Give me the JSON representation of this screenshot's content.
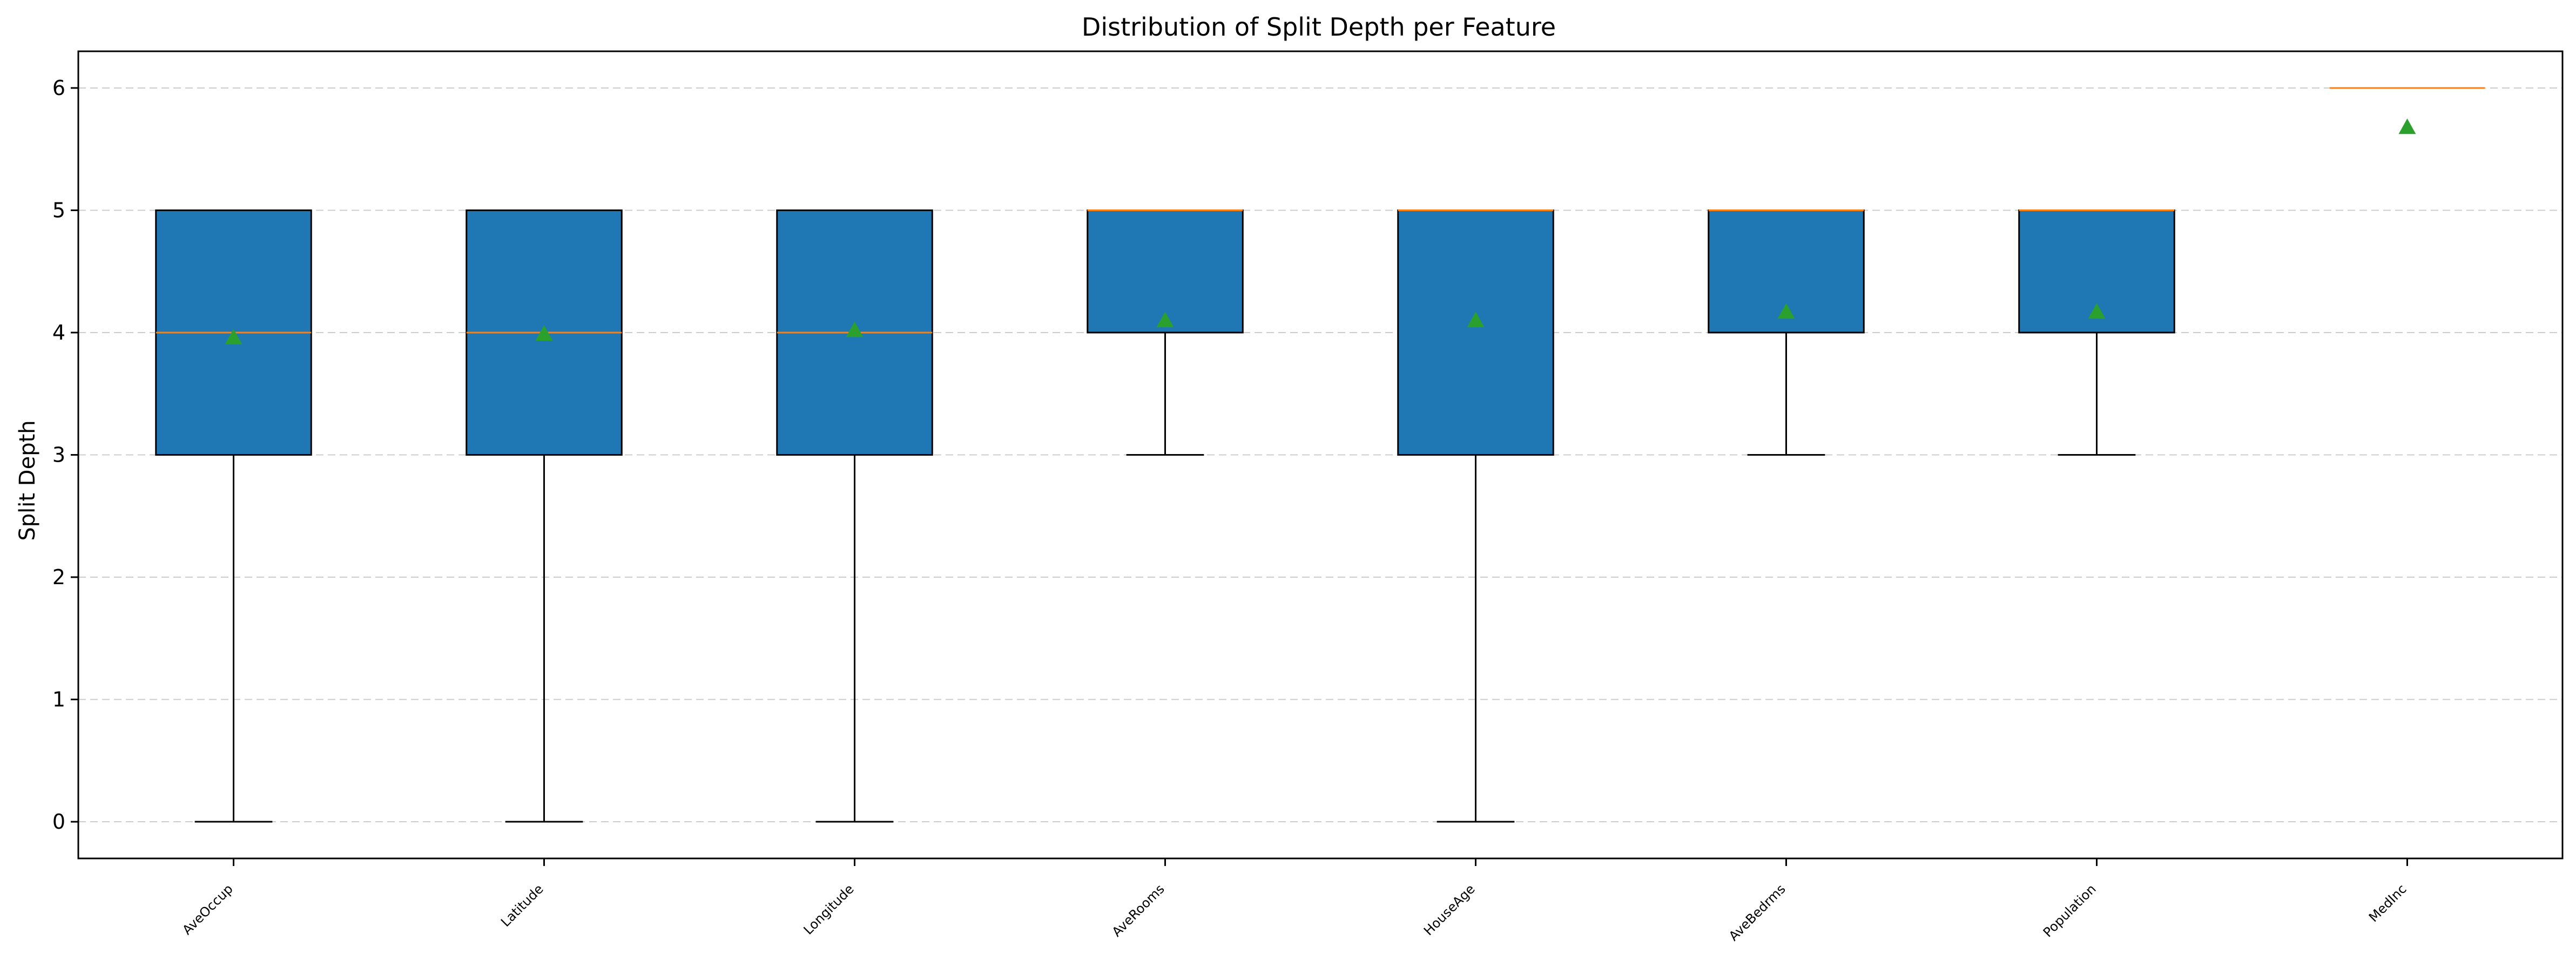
{
  "chart_data": {
    "type": "boxplot",
    "title": "Distribution of Split Depth per Feature",
    "xlabel": "",
    "ylabel": "Split Depth",
    "ylim": [
      -0.3,
      6.3
    ],
    "yticks": [
      0,
      1,
      2,
      3,
      4,
      5,
      6
    ],
    "grid": {
      "y": true,
      "x": false,
      "style": "dashed"
    },
    "categories": [
      "AveOccup",
      "Latitude",
      "Longitude",
      "AveRooms",
      "HouseAge",
      "AveBedrms",
      "Population",
      "MedInc"
    ],
    "boxes": [
      {
        "whisker_low": 0,
        "q1": 3,
        "median": 4,
        "q3": 5,
        "whisker_high": 5,
        "mean": 3.96
      },
      {
        "whisker_low": 0,
        "q1": 3,
        "median": 4,
        "q3": 5,
        "whisker_high": 5,
        "mean": 3.99
      },
      {
        "whisker_low": 0,
        "q1": 3,
        "median": 4,
        "q3": 5,
        "whisker_high": 5,
        "mean": 4.02
      },
      {
        "whisker_low": 3,
        "q1": 4,
        "median": 5,
        "q3": 5,
        "whisker_high": 5,
        "mean": 4.1
      },
      {
        "whisker_low": 0,
        "q1": 3,
        "median": 5,
        "q3": 5,
        "whisker_high": 5,
        "mean": 4.1
      },
      {
        "whisker_low": 3,
        "q1": 4,
        "median": 5,
        "q3": 5,
        "whisker_high": 5,
        "mean": 4.17
      },
      {
        "whisker_low": 3,
        "q1": 4,
        "median": 5,
        "q3": 5,
        "whisker_high": 5,
        "mean": 4.17
      },
      {
        "whisker_low": 6,
        "q1": 6,
        "median": 6,
        "q3": 6,
        "whisker_high": 6,
        "mean": 5.68
      }
    ],
    "colors": {
      "box_fill": "#1f77b4",
      "box_edge": "#000000",
      "median": "#ff7f0e",
      "mean_marker": "#2ca02c",
      "grid": "#cccccc"
    }
  }
}
